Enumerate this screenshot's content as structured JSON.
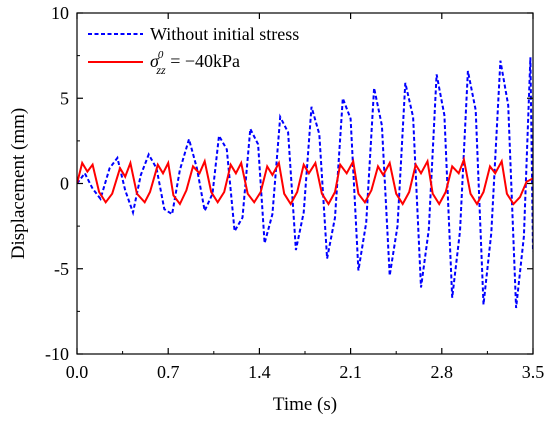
{
  "chart_data": {
    "type": "line",
    "xlabel": "Time (s)",
    "ylabel": "Displacement (mm)",
    "xlim": [
      0.0,
      3.5
    ],
    "ylim": [
      -10,
      10
    ],
    "x_ticks": [
      "0.0",
      "0.7",
      "1.4",
      "2.1",
      "2.8",
      "3.5"
    ],
    "y_ticks": [
      "10",
      "5",
      "0",
      "-5",
      "-10"
    ],
    "legend_position": "top-left",
    "grid": false,
    "series": [
      {
        "name": "Without initial stress",
        "color": "#0000ff",
        "style": "dashed",
        "points": [
          [
            0.0,
            0.0
          ],
          [
            0.06,
            0.6
          ],
          [
            0.12,
            -0.3
          ],
          [
            0.18,
            -0.9
          ],
          [
            0.25,
            0.9
          ],
          [
            0.31,
            1.5
          ],
          [
            0.37,
            -0.4
          ],
          [
            0.43,
            -1.7
          ],
          [
            0.49,
            0.5
          ],
          [
            0.55,
            1.7
          ],
          [
            0.61,
            0.9
          ],
          [
            0.67,
            -1.5
          ],
          [
            0.73,
            -1.8
          ],
          [
            0.79,
            0.8
          ],
          [
            0.86,
            2.6
          ],
          [
            0.92,
            0.9
          ],
          [
            0.98,
            -1.6
          ],
          [
            1.04,
            -0.6
          ],
          [
            1.09,
            2.8
          ],
          [
            1.15,
            2.0
          ],
          [
            1.21,
            -2.8
          ],
          [
            1.27,
            -2.0
          ],
          [
            1.33,
            3.2
          ],
          [
            1.39,
            2.3
          ],
          [
            1.44,
            -3.5
          ],
          [
            1.5,
            -1.8
          ],
          [
            1.56,
            3.9
          ],
          [
            1.62,
            3.0
          ],
          [
            1.68,
            -3.9
          ],
          [
            1.74,
            -1.7
          ],
          [
            1.8,
            4.5
          ],
          [
            1.86,
            2.9
          ],
          [
            1.92,
            -4.4
          ],
          [
            1.98,
            -2.0
          ],
          [
            2.04,
            5.0
          ],
          [
            2.1,
            3.8
          ],
          [
            2.16,
            -5.1
          ],
          [
            2.22,
            -2.3
          ],
          [
            2.28,
            5.6
          ],
          [
            2.34,
            3.4
          ],
          [
            2.4,
            -5.4
          ],
          [
            2.46,
            -2.5
          ],
          [
            2.52,
            5.9
          ],
          [
            2.58,
            3.9
          ],
          [
            2.64,
            -6.1
          ],
          [
            2.7,
            -2.7
          ],
          [
            2.76,
            6.4
          ],
          [
            2.82,
            4.0
          ],
          [
            2.88,
            -6.7
          ],
          [
            2.94,
            -2.8
          ],
          [
            3.0,
            6.6
          ],
          [
            3.06,
            4.3
          ],
          [
            3.12,
            -7.1
          ],
          [
            3.18,
            -2.9
          ],
          [
            3.25,
            7.2
          ],
          [
            3.31,
            4.6
          ],
          [
            3.37,
            -7.3
          ],
          [
            3.43,
            -3.1
          ],
          [
            3.48,
            7.4
          ],
          [
            3.5,
            -4.0
          ]
        ]
      },
      {
        "name": "σ⁰zz = −40kPa",
        "legend_math": {
          "symbol": "σ",
          "subscript": "zz",
          "superscript": "0",
          "rest": " = −40kPa"
        },
        "color": "#ff0000",
        "style": "solid",
        "points": [
          [
            0.0,
            0.0
          ],
          [
            0.04,
            1.2
          ],
          [
            0.08,
            0.7
          ],
          [
            0.12,
            1.1
          ],
          [
            0.17,
            -0.5
          ],
          [
            0.22,
            -1.1
          ],
          [
            0.27,
            -0.6
          ],
          [
            0.33,
            0.9
          ],
          [
            0.37,
            0.4
          ],
          [
            0.41,
            1.2
          ],
          [
            0.46,
            -0.6
          ],
          [
            0.52,
            -1.1
          ],
          [
            0.56,
            -0.5
          ],
          [
            0.62,
            1.1
          ],
          [
            0.66,
            0.6
          ],
          [
            0.7,
            1.2
          ],
          [
            0.74,
            -0.7
          ],
          [
            0.79,
            -1.2
          ],
          [
            0.84,
            -0.4
          ],
          [
            0.89,
            1.0
          ],
          [
            0.94,
            0.6
          ],
          [
            0.98,
            1.3
          ],
          [
            1.03,
            -0.5
          ],
          [
            1.08,
            -1.1
          ],
          [
            1.13,
            -0.5
          ],
          [
            1.18,
            1.1
          ],
          [
            1.22,
            0.6
          ],
          [
            1.26,
            1.2
          ],
          [
            1.31,
            -0.6
          ],
          [
            1.36,
            -1.1
          ],
          [
            1.41,
            -0.5
          ],
          [
            1.46,
            1.0
          ],
          [
            1.5,
            0.5
          ],
          [
            1.55,
            1.2
          ],
          [
            1.59,
            -0.6
          ],
          [
            1.64,
            -1.2
          ],
          [
            1.69,
            -0.5
          ],
          [
            1.74,
            1.1
          ],
          [
            1.78,
            0.6
          ],
          [
            1.83,
            1.2
          ],
          [
            1.88,
            -0.6
          ],
          [
            1.93,
            -1.2
          ],
          [
            1.98,
            -0.5
          ],
          [
            2.02,
            1.1
          ],
          [
            2.07,
            0.6
          ],
          [
            2.12,
            1.3
          ],
          [
            2.16,
            -0.6
          ],
          [
            2.21,
            -1.1
          ],
          [
            2.26,
            -0.4
          ],
          [
            2.31,
            1.0
          ],
          [
            2.35,
            0.5
          ],
          [
            2.4,
            1.2
          ],
          [
            2.45,
            -0.6
          ],
          [
            2.5,
            -1.2
          ],
          [
            2.55,
            -0.5
          ],
          [
            2.6,
            1.1
          ],
          [
            2.64,
            0.6
          ],
          [
            2.69,
            1.3
          ],
          [
            2.73,
            -0.6
          ],
          [
            2.78,
            -1.2
          ],
          [
            2.83,
            -0.5
          ],
          [
            2.88,
            1.0
          ],
          [
            2.93,
            0.6
          ],
          [
            2.97,
            1.4
          ],
          [
            3.02,
            -0.6
          ],
          [
            3.07,
            -1.2
          ],
          [
            3.12,
            -0.5
          ],
          [
            3.17,
            1.0
          ],
          [
            3.21,
            0.6
          ],
          [
            3.26,
            1.3
          ],
          [
            3.3,
            -0.6
          ],
          [
            3.35,
            -1.2
          ],
          [
            3.4,
            -0.8
          ],
          [
            3.45,
            0.1
          ],
          [
            3.5,
            0.3
          ]
        ]
      }
    ]
  }
}
